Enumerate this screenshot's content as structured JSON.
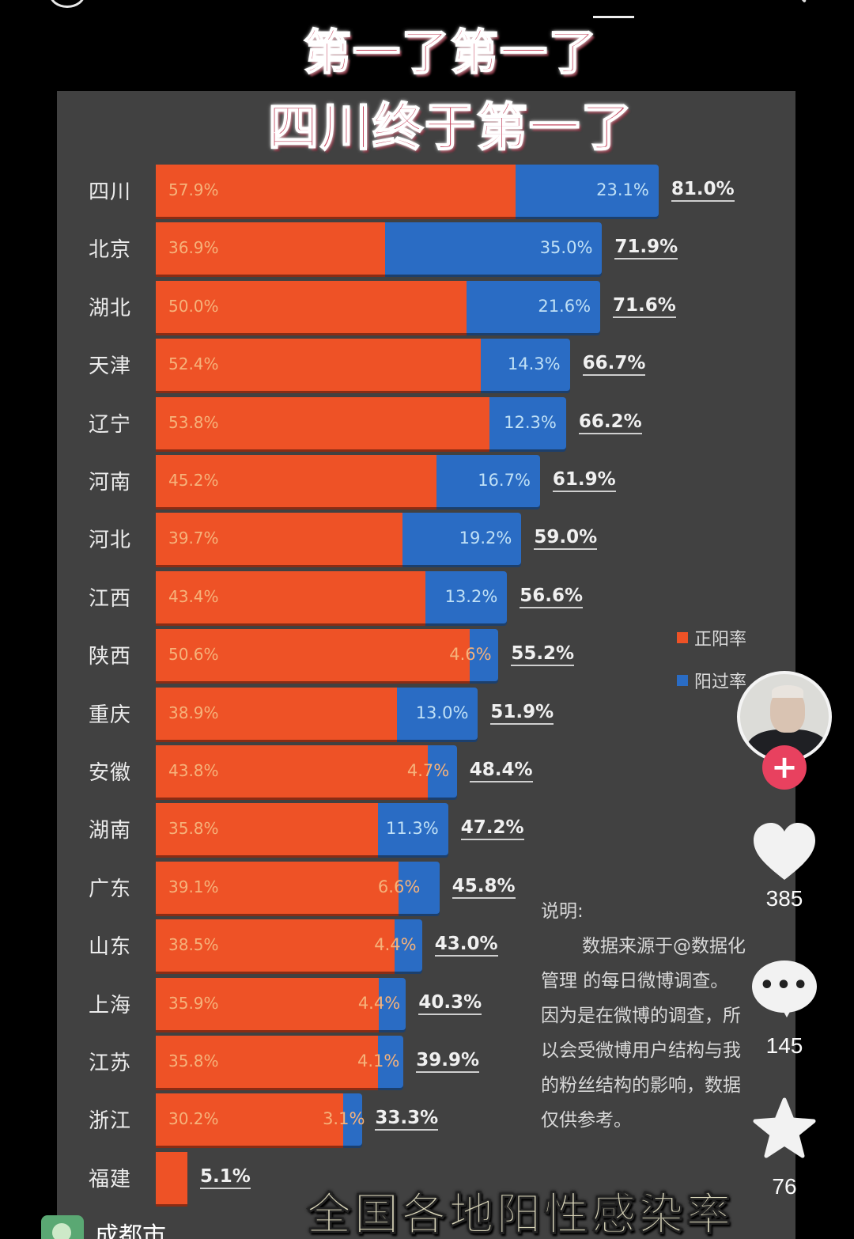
{
  "headline": {
    "line1": "第一了第一了",
    "line2": "四川终于第一了"
  },
  "bottom_title": "全国各地阳性感染率",
  "legend": {
    "items": [
      {
        "label": "正阳率",
        "color": "#ee5226"
      },
      {
        "label": "阳过率",
        "color": "#2a6cc4"
      }
    ]
  },
  "note": {
    "title": "说明:",
    "lines": [
      "数据来源于@数据化",
      "管理 的每日微博调查。",
      "因为是在微博的调查，所",
      "以会受微博用户结构与我",
      "的粉丝结构的影响，数据",
      "仅供参考。"
    ]
  },
  "sidebar": {
    "likes": "385",
    "comments": "145",
    "favorites": "76"
  },
  "location": "成都市",
  "chart_data": {
    "type": "bar",
    "orientation": "horizontal",
    "stacked": true,
    "title": "全国各地阳性感染率",
    "categories": [
      "四川",
      "北京",
      "湖北",
      "天津",
      "辽宁",
      "河南",
      "河北",
      "江西",
      "陕西",
      "重庆",
      "安徽",
      "湖南",
      "广东",
      "山东",
      "上海",
      "江苏",
      "浙江",
      "福建"
    ],
    "series": [
      {
        "name": "正阳率",
        "color": "#ee5226",
        "values": [
          57.9,
          36.9,
          50.0,
          52.4,
          53.8,
          45.2,
          39.7,
          43.4,
          50.6,
          38.9,
          43.8,
          35.8,
          39.1,
          38.5,
          35.9,
          35.8,
          30.2,
          5.1
        ]
      },
      {
        "name": "阳过率",
        "color": "#2a6cc4",
        "values": [
          23.1,
          35.0,
          21.6,
          14.3,
          12.3,
          16.7,
          19.2,
          13.2,
          4.6,
          13.0,
          4.7,
          11.3,
          6.6,
          4.4,
          4.4,
          4.1,
          3.1,
          0
        ]
      }
    ],
    "totals": [
      81.0,
      71.9,
      71.6,
      66.7,
      66.2,
      61.9,
      59.0,
      56.6,
      55.2,
      51.9,
      48.4,
      47.2,
      45.8,
      43.0,
      40.3,
      39.9,
      33.3,
      5.1
    ],
    "labels_pos": [
      "57.9%",
      "36.9%",
      "50.0%",
      "52.4%",
      "53.8%",
      "45.2%",
      "39.7%",
      "43.4%",
      "50.6%",
      "38.9%",
      "43.8%",
      "35.8%",
      "39.1%",
      "38.5%",
      "35.9%",
      "35.8%",
      "30.2%",
      ""
    ],
    "labels_neg": [
      "23.1%",
      "35.0%",
      "21.6%",
      "14.3%",
      "12.3%",
      "16.7%",
      "19.2%",
      "13.2%",
      "4.6%",
      "13.0%",
      "4.7%",
      "11.3%",
      "6.6%",
      "4.4%",
      "4.4%",
      "4.1%",
      "3.1%",
      ""
    ],
    "labels_total": [
      "81.0%",
      "71.9%",
      "71.6%",
      "66.7%",
      "66.2%",
      "61.9%",
      "59.0%",
      "56.6%",
      "55.2%",
      "51.9%",
      "48.4%",
      "47.2%",
      "45.8%",
      "43.0%",
      "40.3%",
      "39.9%",
      "33.3%",
      "5.1%"
    ],
    "xlabel": "",
    "ylabel": "",
    "unit": "%",
    "legend_position": "right",
    "grid": false
  }
}
